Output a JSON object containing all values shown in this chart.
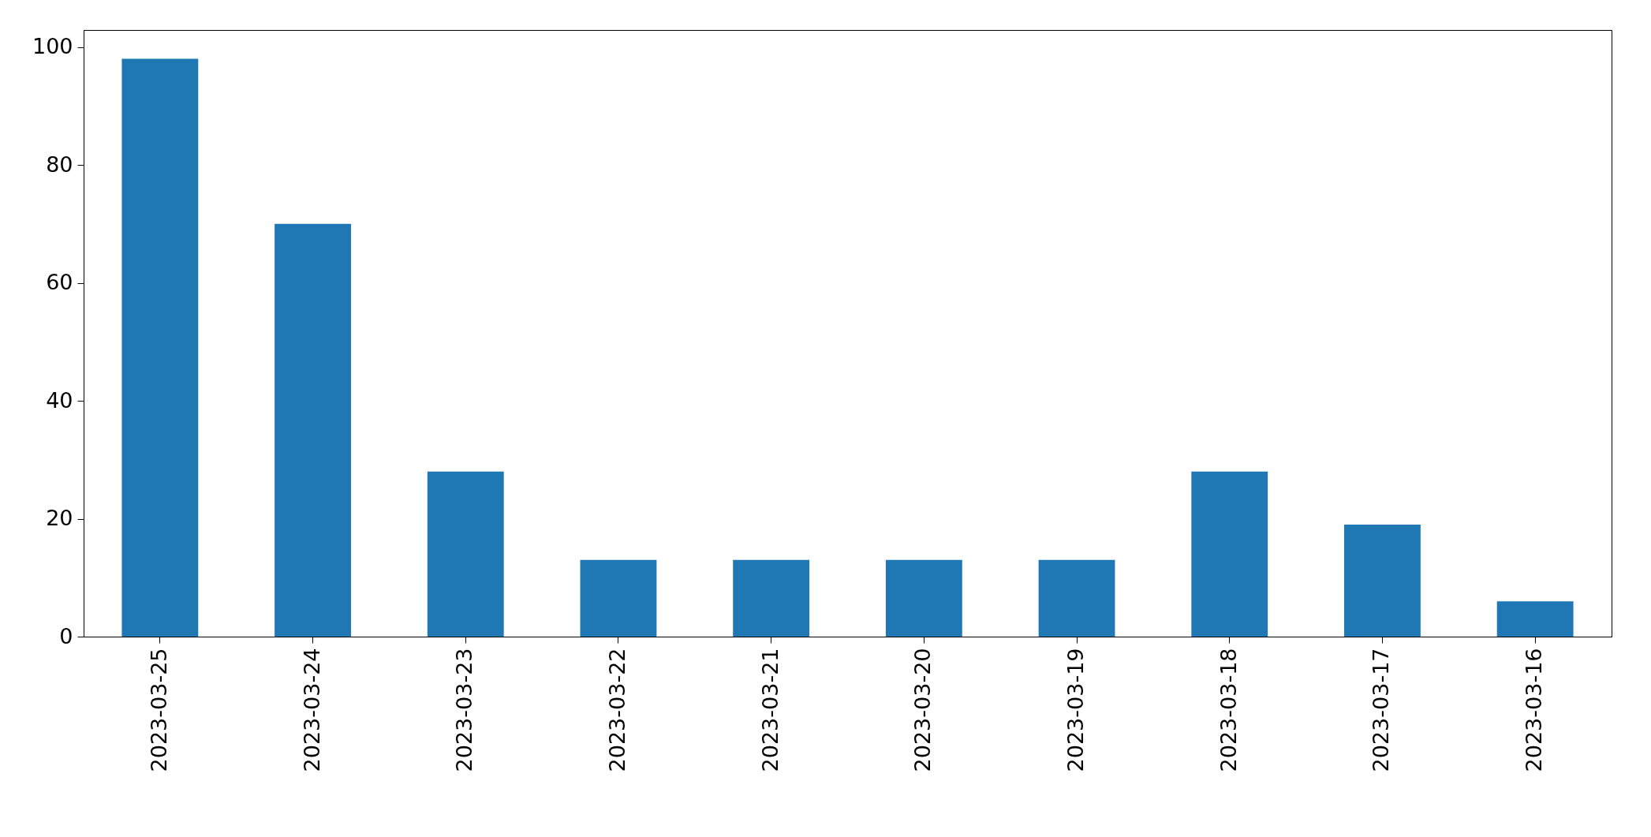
{
  "chart_data": {
    "type": "bar",
    "categories": [
      "2023-03-25",
      "2023-03-24",
      "2023-03-23",
      "2023-03-22",
      "2023-03-21",
      "2023-03-20",
      "2023-03-19",
      "2023-03-18",
      "2023-03-17",
      "2023-03-16"
    ],
    "values": [
      98,
      70,
      28,
      13,
      13,
      13,
      13,
      28,
      19,
      6
    ],
    "color": "#1f77b4",
    "ylim": [
      0,
      102.9
    ],
    "yticks": [
      0,
      20,
      40,
      60,
      80,
      100
    ],
    "grid": false
  }
}
